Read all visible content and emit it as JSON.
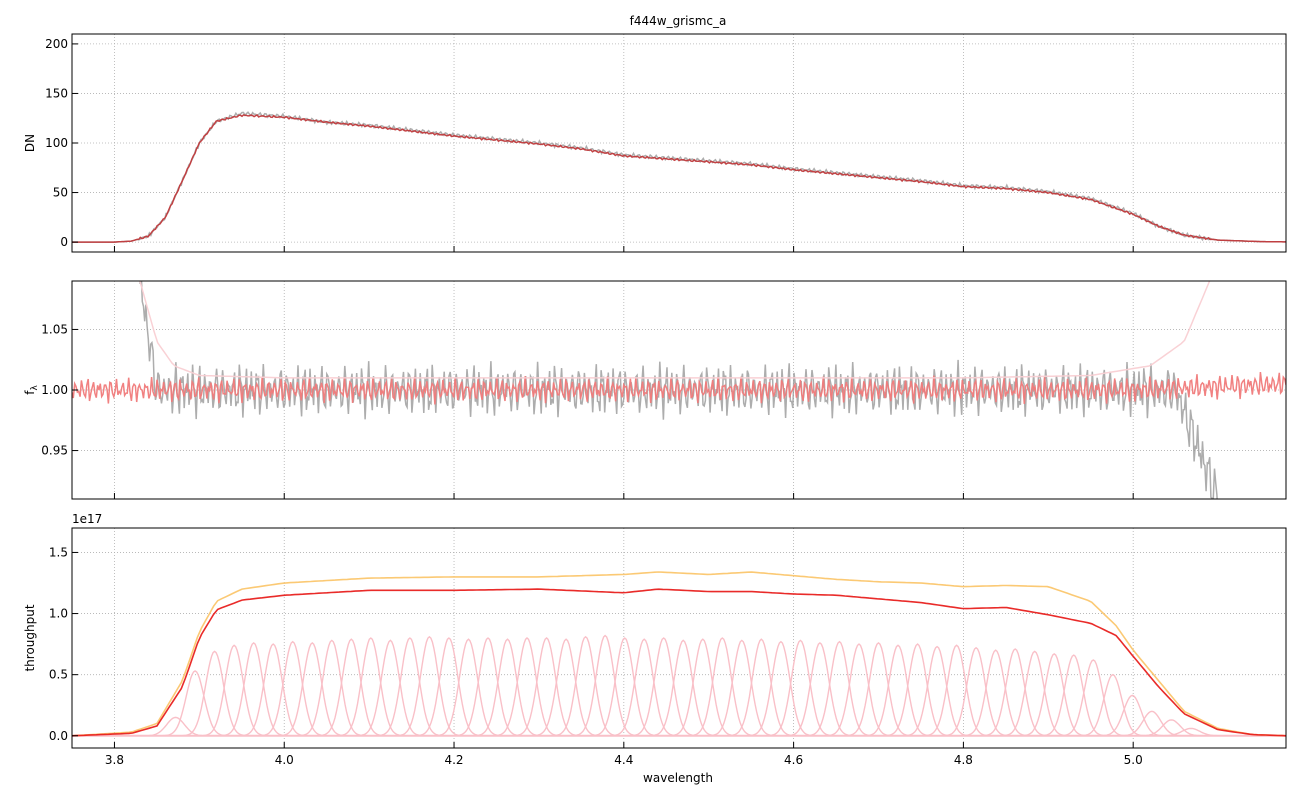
{
  "figure": {
    "title": "f444w_grismc_a",
    "xlabel": "wavelength"
  },
  "chart_data": [
    {
      "type": "line",
      "title": "f444w_grismc_a",
      "xlabel": "",
      "ylabel": "DN",
      "xlim": [
        3.75,
        5.18
      ],
      "ylim": [
        -10,
        210
      ],
      "xticks": [
        3.8,
        4.0,
        4.2,
        4.4,
        4.6,
        4.8,
        5.0
      ],
      "xtick_labels": [],
      "yticks": [
        0,
        50,
        100,
        150,
        200
      ],
      "ytick_labels": [
        "0",
        "50",
        "100",
        "150",
        "200"
      ],
      "grid": true,
      "series": [
        {
          "role": "observed",
          "color": "#999999",
          "x": [
            3.75,
            3.8,
            3.82,
            3.84,
            3.86,
            3.88,
            3.9,
            3.92,
            3.95,
            4.0,
            4.05,
            4.1,
            4.15,
            4.2,
            4.25,
            4.3,
            4.35,
            4.4,
            4.45,
            4.5,
            4.55,
            4.6,
            4.65,
            4.7,
            4.75,
            4.8,
            4.85,
            4.9,
            4.95,
            5.0,
            5.03,
            5.06,
            5.1,
            5.15,
            5.18
          ],
          "y": [
            0,
            0,
            1,
            6,
            25,
            62,
            100,
            122,
            130,
            127,
            121,
            118,
            113,
            108,
            104,
            100,
            95,
            88,
            85,
            82,
            79,
            74,
            70,
            66,
            62,
            57,
            55,
            51,
            44,
            29,
            16,
            7,
            2,
            0.5,
            0.2
          ]
        },
        {
          "role": "model",
          "color": "#c0393b",
          "x": [
            3.75,
            3.8,
            3.82,
            3.84,
            3.86,
            3.88,
            3.9,
            3.92,
            3.95,
            4.0,
            4.05,
            4.1,
            4.15,
            4.2,
            4.25,
            4.3,
            4.35,
            4.4,
            4.45,
            4.5,
            4.55,
            4.6,
            4.65,
            4.7,
            4.75,
            4.8,
            4.85,
            4.9,
            4.95,
            5.0,
            5.03,
            5.06,
            5.1,
            5.15,
            5.18
          ],
          "y": [
            0,
            0,
            1,
            6,
            25,
            62,
            100,
            122,
            128,
            126,
            121,
            117,
            112,
            107,
            103,
            99,
            94,
            87,
            84,
            81,
            78,
            73,
            69,
            65,
            61,
            56,
            54,
            50,
            43,
            28,
            16,
            7,
            2,
            0.5,
            0.2
          ]
        }
      ]
    },
    {
      "type": "line",
      "title": "",
      "xlabel": "",
      "ylabel": "f_λ",
      "ylabel_main": "f",
      "ylabel_sub": "λ",
      "xlim": [
        3.75,
        5.18
      ],
      "ylim": [
        0.91,
        1.09
      ],
      "xticks": [
        3.8,
        4.0,
        4.2,
        4.4,
        4.6,
        4.8,
        5.0
      ],
      "xtick_labels": [],
      "yticks": [
        0.95,
        1.0,
        1.05
      ],
      "ytick_labels": [
        "0.95",
        "1.00",
        "1.05"
      ],
      "grid": true,
      "series": [
        {
          "role": "observed-ratio",
          "color": "#999999",
          "noise": 0.025,
          "x": [
            3.83,
            3.85,
            3.9,
            4.0,
            4.1,
            4.2,
            4.3,
            4.4,
            4.5,
            4.6,
            4.7,
            4.8,
            4.9,
            5.0,
            5.05,
            5.1
          ],
          "y": [
            1.09,
            1.0,
            1.0,
            1.0,
            1.0,
            1.0,
            1.0,
            1.0,
            1.0,
            1.0,
            1.0,
            1.0,
            1.0,
            1.0,
            1.0,
            0.91
          ]
        },
        {
          "role": "model-ratio",
          "color": "#f07a7a",
          "noise": 0.012,
          "x": [
            3.75,
            3.85,
            4.0,
            4.2,
            4.4,
            4.6,
            4.8,
            5.0,
            5.18
          ],
          "y": [
            1.0,
            1.0,
            1.0,
            1.0,
            1.0,
            1.0,
            1.0,
            1.0,
            1.005
          ]
        },
        {
          "role": "envelope",
          "color": "#f9cfd3",
          "x": [
            3.83,
            3.85,
            3.87,
            3.9,
            4.0,
            4.4,
            4.8,
            4.95,
            5.02,
            5.06,
            5.09
          ],
          "y": [
            1.09,
            1.04,
            1.02,
            1.012,
            1.01,
            1.01,
            1.01,
            1.012,
            1.02,
            1.04,
            1.09
          ]
        }
      ]
    },
    {
      "type": "line",
      "title": "",
      "xlabel": "wavelength",
      "ylabel": "throughput",
      "scale_label": "1e17",
      "xlim": [
        3.75,
        5.18
      ],
      "ylim": [
        -0.1,
        1.7
      ],
      "xticks": [
        3.8,
        4.0,
        4.2,
        4.4,
        4.6,
        4.8,
        5.0
      ],
      "xtick_labels": [
        "3.8",
        "4.0",
        "4.2",
        "4.4",
        "4.6",
        "4.8",
        "5.0"
      ],
      "yticks": [
        0.0,
        0.5,
        1.0,
        1.5
      ],
      "ytick_labels": [
        "0.0",
        "0.5",
        "1.0",
        "1.5"
      ],
      "grid": true,
      "series": [
        {
          "role": "upper-envelope",
          "color": "#fbc66d",
          "x": [
            3.75,
            3.82,
            3.85,
            3.88,
            3.9,
            3.92,
            3.95,
            4.0,
            4.1,
            4.2,
            4.3,
            4.4,
            4.44,
            4.5,
            4.55,
            4.6,
            4.65,
            4.7,
            4.75,
            4.8,
            4.85,
            4.9,
            4.95,
            4.98,
            5.0,
            5.03,
            5.06,
            5.1,
            5.14,
            5.18
          ],
          "y": [
            0,
            0.03,
            0.1,
            0.45,
            0.85,
            1.1,
            1.2,
            1.25,
            1.29,
            1.3,
            1.3,
            1.32,
            1.34,
            1.32,
            1.34,
            1.31,
            1.28,
            1.26,
            1.25,
            1.22,
            1.23,
            1.22,
            1.1,
            0.9,
            0.7,
            0.45,
            0.2,
            0.06,
            0.01,
            0
          ]
        },
        {
          "role": "total",
          "color": "#e8201e",
          "x": [
            3.75,
            3.82,
            3.85,
            3.88,
            3.9,
            3.92,
            3.95,
            4.0,
            4.1,
            4.2,
            4.3,
            4.4,
            4.44,
            4.5,
            4.55,
            4.6,
            4.65,
            4.7,
            4.75,
            4.8,
            4.85,
            4.9,
            4.95,
            4.98,
            5.0,
            5.03,
            5.06,
            5.1,
            5.14,
            5.18
          ],
          "y": [
            0,
            0.02,
            0.08,
            0.4,
            0.8,
            1.03,
            1.11,
            1.15,
            1.19,
            1.19,
            1.2,
            1.17,
            1.2,
            1.18,
            1.18,
            1.16,
            1.15,
            1.12,
            1.09,
            1.04,
            1.05,
            0.99,
            0.92,
            0.82,
            0.65,
            0.4,
            0.18,
            0.05,
            0.01,
            0
          ]
        }
      ],
      "components": {
        "color": "#f9c0c8",
        "centers": [
          3.872,
          3.895,
          3.918,
          3.941,
          3.964,
          3.987,
          4.01,
          4.033,
          4.056,
          4.079,
          4.102,
          4.125,
          4.148,
          4.171,
          4.194,
          4.217,
          4.24,
          4.263,
          4.286,
          4.309,
          4.332,
          4.355,
          4.378,
          4.401,
          4.424,
          4.447,
          4.47,
          4.493,
          4.516,
          4.539,
          4.562,
          4.585,
          4.608,
          4.631,
          4.654,
          4.677,
          4.7,
          4.723,
          4.746,
          4.769,
          4.792,
          4.815,
          4.838,
          4.861,
          4.884,
          4.907,
          4.93,
          4.953,
          4.976,
          4.999,
          5.022,
          5.045,
          5.068
        ],
        "peaks": [
          0.15,
          0.53,
          0.69,
          0.74,
          0.76,
          0.75,
          0.77,
          0.76,
          0.78,
          0.79,
          0.8,
          0.78,
          0.8,
          0.81,
          0.8,
          0.79,
          0.8,
          0.79,
          0.8,
          0.8,
          0.79,
          0.81,
          0.82,
          0.8,
          0.79,
          0.8,
          0.78,
          0.79,
          0.8,
          0.78,
          0.79,
          0.77,
          0.78,
          0.76,
          0.77,
          0.75,
          0.76,
          0.74,
          0.75,
          0.73,
          0.74,
          0.72,
          0.7,
          0.71,
          0.69,
          0.67,
          0.66,
          0.62,
          0.5,
          0.33,
          0.2,
          0.13,
          0.06
        ],
        "sigma": 0.0105
      }
    }
  ]
}
